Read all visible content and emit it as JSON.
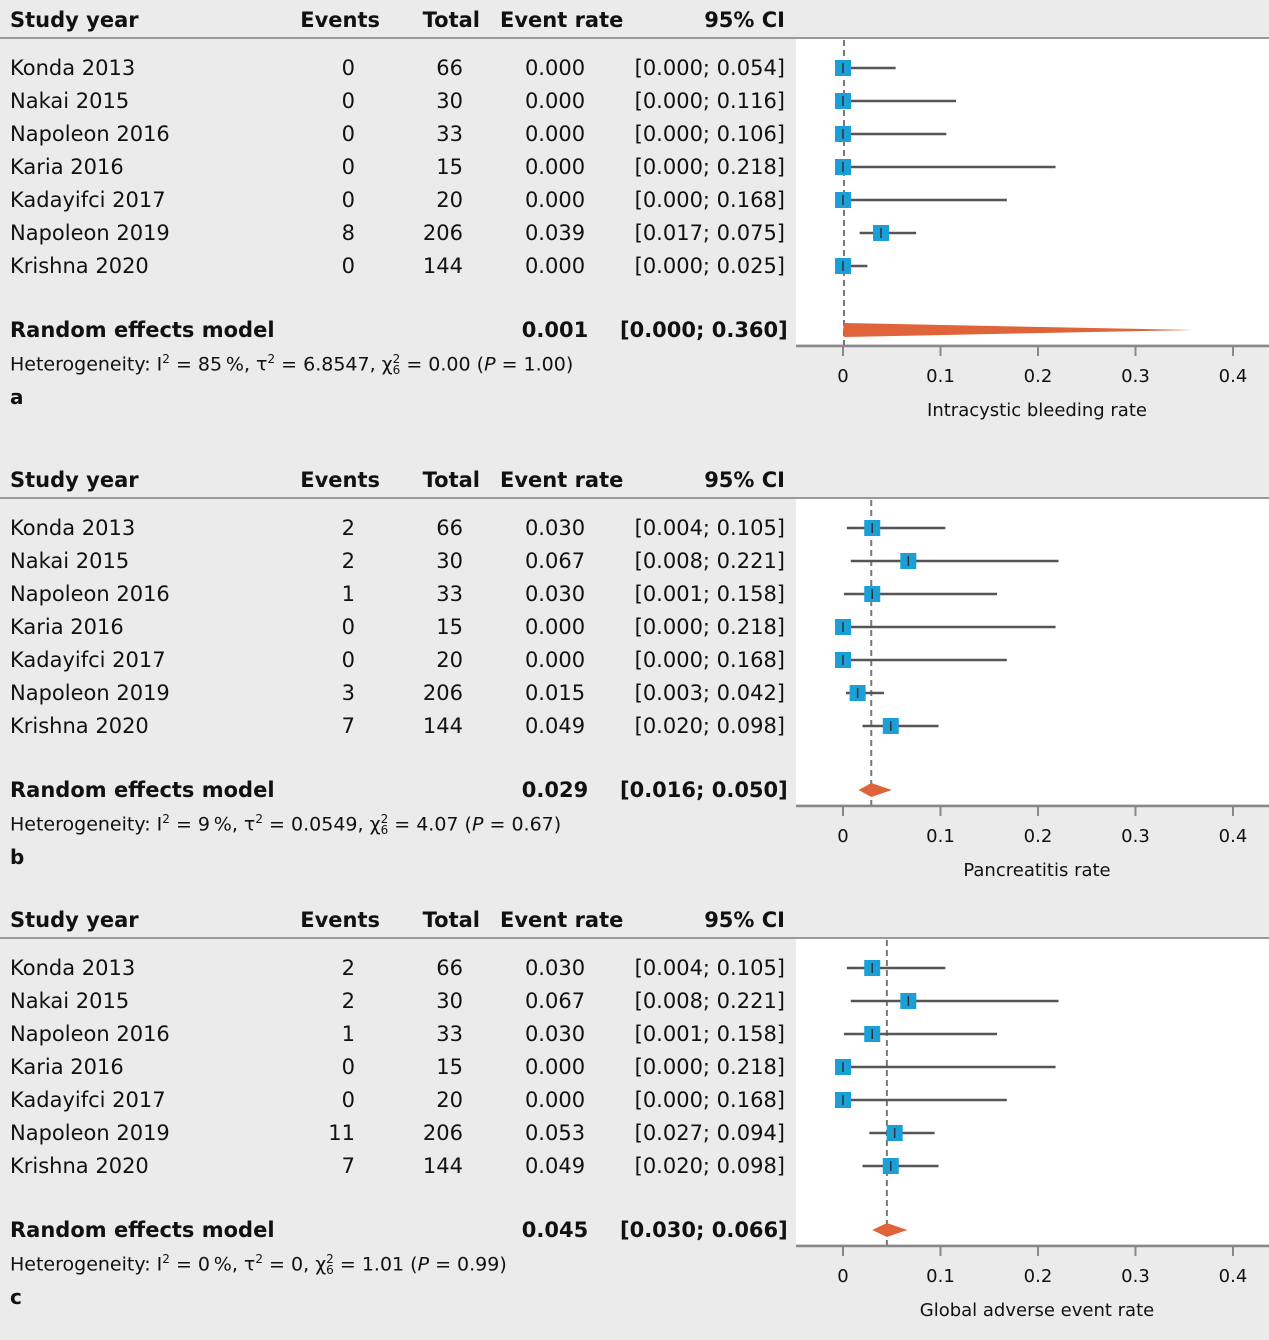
{
  "headers": {
    "study": "Study year",
    "events": "Events",
    "total": "Total",
    "rate": "Event rate",
    "ci": "95% CI"
  },
  "model_label": "Random effects model",
  "colors": {
    "box": "#1a9fd6",
    "diamond": "#e0643a",
    "line": "#555555",
    "background": "#ebebeb"
  },
  "chart_data": [
    {
      "type": "forest",
      "panel_label": "a",
      "xlabel": "Intracystic bleeding rate",
      "xlim": [
        0,
        0.4
      ],
      "xticks": [
        0,
        0.1,
        0.2,
        0.3,
        0.4
      ],
      "tick_labels": [
        "0",
        "0.1",
        "0.2",
        "0.3",
        "0.4"
      ],
      "studies": [
        {
          "name": "Konda 2013",
          "events": "0",
          "total": "66",
          "rate": 0.0,
          "lo": 0.0,
          "hi": 0.054,
          "rate_text": "0.000",
          "ci_text": "[0.000; 0.054]"
        },
        {
          "name": "Nakai 2015",
          "events": "0",
          "total": "30",
          "rate": 0.0,
          "lo": 0.0,
          "hi": 0.116,
          "rate_text": "0.000",
          "ci_text": "[0.000; 0.116]"
        },
        {
          "name": "Napoleon 2016",
          "events": "0",
          "total": "33",
          "rate": 0.0,
          "lo": 0.0,
          "hi": 0.106,
          "rate_text": "0.000",
          "ci_text": "[0.000; 0.106]"
        },
        {
          "name": "Karia 2016",
          "events": "0",
          "total": "15",
          "rate": 0.0,
          "lo": 0.0,
          "hi": 0.218,
          "rate_text": "0.000",
          "ci_text": "[0.000; 0.218]"
        },
        {
          "name": "Kadayifci 2017",
          "events": "0",
          "total": "20",
          "rate": 0.0,
          "lo": 0.0,
          "hi": 0.168,
          "rate_text": "0.000",
          "ci_text": "[0.000; 0.168]"
        },
        {
          "name": "Napoleon 2019",
          "events": "8",
          "total": "206",
          "rate": 0.039,
          "lo": 0.017,
          "hi": 0.075,
          "rate_text": "0.039",
          "ci_text": "[0.017; 0.075]"
        },
        {
          "name": "Krishna 2020",
          "events": "0",
          "total": "144",
          "rate": 0.0,
          "lo": 0.0,
          "hi": 0.025,
          "rate_text": "0.000",
          "ci_text": "[0.000; 0.025]"
        }
      ],
      "pooled": {
        "rate": 0.001,
        "lo": 0.0,
        "hi": 0.36,
        "rate_text": "0.001",
        "ci_text": "[0.000; 0.360]"
      },
      "heterogeneity": {
        "i2": "85",
        "tau2": "6.8547",
        "chi2": "0.00",
        "df": "6",
        "p": "1.00"
      }
    },
    {
      "type": "forest",
      "panel_label": "b",
      "xlabel": "Pancreatitis rate",
      "xlim": [
        0,
        0.4
      ],
      "xticks": [
        0,
        0.1,
        0.2,
        0.3,
        0.4
      ],
      "tick_labels": [
        "0",
        "0.1",
        "0.2",
        "0.3",
        "0.4"
      ],
      "studies": [
        {
          "name": "Konda 2013",
          "events": "2",
          "total": "66",
          "rate": 0.03,
          "lo": 0.004,
          "hi": 0.105,
          "rate_text": "0.030",
          "ci_text": "[0.004; 0.105]"
        },
        {
          "name": "Nakai 2015",
          "events": "2",
          "total": "30",
          "rate": 0.067,
          "lo": 0.008,
          "hi": 0.221,
          "rate_text": "0.067",
          "ci_text": "[0.008; 0.221]"
        },
        {
          "name": "Napoleon 2016",
          "events": "1",
          "total": "33",
          "rate": 0.03,
          "lo": 0.001,
          "hi": 0.158,
          "rate_text": "0.030",
          "ci_text": "[0.001; 0.158]"
        },
        {
          "name": "Karia 2016",
          "events": "0",
          "total": "15",
          "rate": 0.0,
          "lo": 0.0,
          "hi": 0.218,
          "rate_text": "0.000",
          "ci_text": "[0.000; 0.218]"
        },
        {
          "name": "Kadayifci 2017",
          "events": "0",
          "total": "20",
          "rate": 0.0,
          "lo": 0.0,
          "hi": 0.168,
          "rate_text": "0.000",
          "ci_text": "[0.000; 0.168]"
        },
        {
          "name": "Napoleon 2019",
          "events": "3",
          "total": "206",
          "rate": 0.015,
          "lo": 0.003,
          "hi": 0.042,
          "rate_text": "0.015",
          "ci_text": "[0.003; 0.042]"
        },
        {
          "name": "Krishna 2020",
          "events": "7",
          "total": "144",
          "rate": 0.049,
          "lo": 0.02,
          "hi": 0.098,
          "rate_text": "0.049",
          "ci_text": "[0.020; 0.098]"
        }
      ],
      "pooled": {
        "rate": 0.029,
        "lo": 0.016,
        "hi": 0.05,
        "rate_text": "0.029",
        "ci_text": "[0.016; 0.050]"
      },
      "heterogeneity": {
        "i2": "9",
        "tau2": "0.0549",
        "chi2": "4.07",
        "df": "6",
        "p": "0.67"
      }
    },
    {
      "type": "forest",
      "panel_label": "c",
      "xlabel": "Global adverse event rate",
      "xlim": [
        0,
        0.4
      ],
      "xticks": [
        0,
        0.1,
        0.2,
        0.3,
        0.4
      ],
      "tick_labels": [
        "0",
        "0.1",
        "0.2",
        "0.3",
        "0.4"
      ],
      "studies": [
        {
          "name": "Konda 2013",
          "events": "2",
          "total": "66",
          "rate": 0.03,
          "lo": 0.004,
          "hi": 0.105,
          "rate_text": "0.030",
          "ci_text": "[0.004; 0.105]"
        },
        {
          "name": "Nakai 2015",
          "events": "2",
          "total": "30",
          "rate": 0.067,
          "lo": 0.008,
          "hi": 0.221,
          "rate_text": "0.067",
          "ci_text": "[0.008; 0.221]"
        },
        {
          "name": "Napoleon 2016",
          "events": "1",
          "total": "33",
          "rate": 0.03,
          "lo": 0.001,
          "hi": 0.158,
          "rate_text": "0.030",
          "ci_text": "[0.001; 0.158]"
        },
        {
          "name": "Karia 2016",
          "events": "0",
          "total": "15",
          "rate": 0.0,
          "lo": 0.0,
          "hi": 0.218,
          "rate_text": "0.000",
          "ci_text": "[0.000; 0.218]"
        },
        {
          "name": "Kadayifci 2017",
          "events": "0",
          "total": "20",
          "rate": 0.0,
          "lo": 0.0,
          "hi": 0.168,
          "rate_text": "0.000",
          "ci_text": "[0.000; 0.168]"
        },
        {
          "name": "Napoleon 2019",
          "events": "11",
          "total": "206",
          "rate": 0.053,
          "lo": 0.027,
          "hi": 0.094,
          "rate_text": "0.053",
          "ci_text": "[0.027; 0.094]"
        },
        {
          "name": "Krishna 2020",
          "events": "7",
          "total": "144",
          "rate": 0.049,
          "lo": 0.02,
          "hi": 0.098,
          "rate_text": "0.049",
          "ci_text": "[0.020; 0.098]"
        }
      ],
      "pooled": {
        "rate": 0.045,
        "lo": 0.03,
        "hi": 0.066,
        "rate_text": "0.045",
        "ci_text": "[0.030; 0.066]"
      },
      "heterogeneity": {
        "i2": "0",
        "tau2": "0",
        "chi2": "1.01",
        "df": "6",
        "p": "0.99"
      }
    }
  ]
}
